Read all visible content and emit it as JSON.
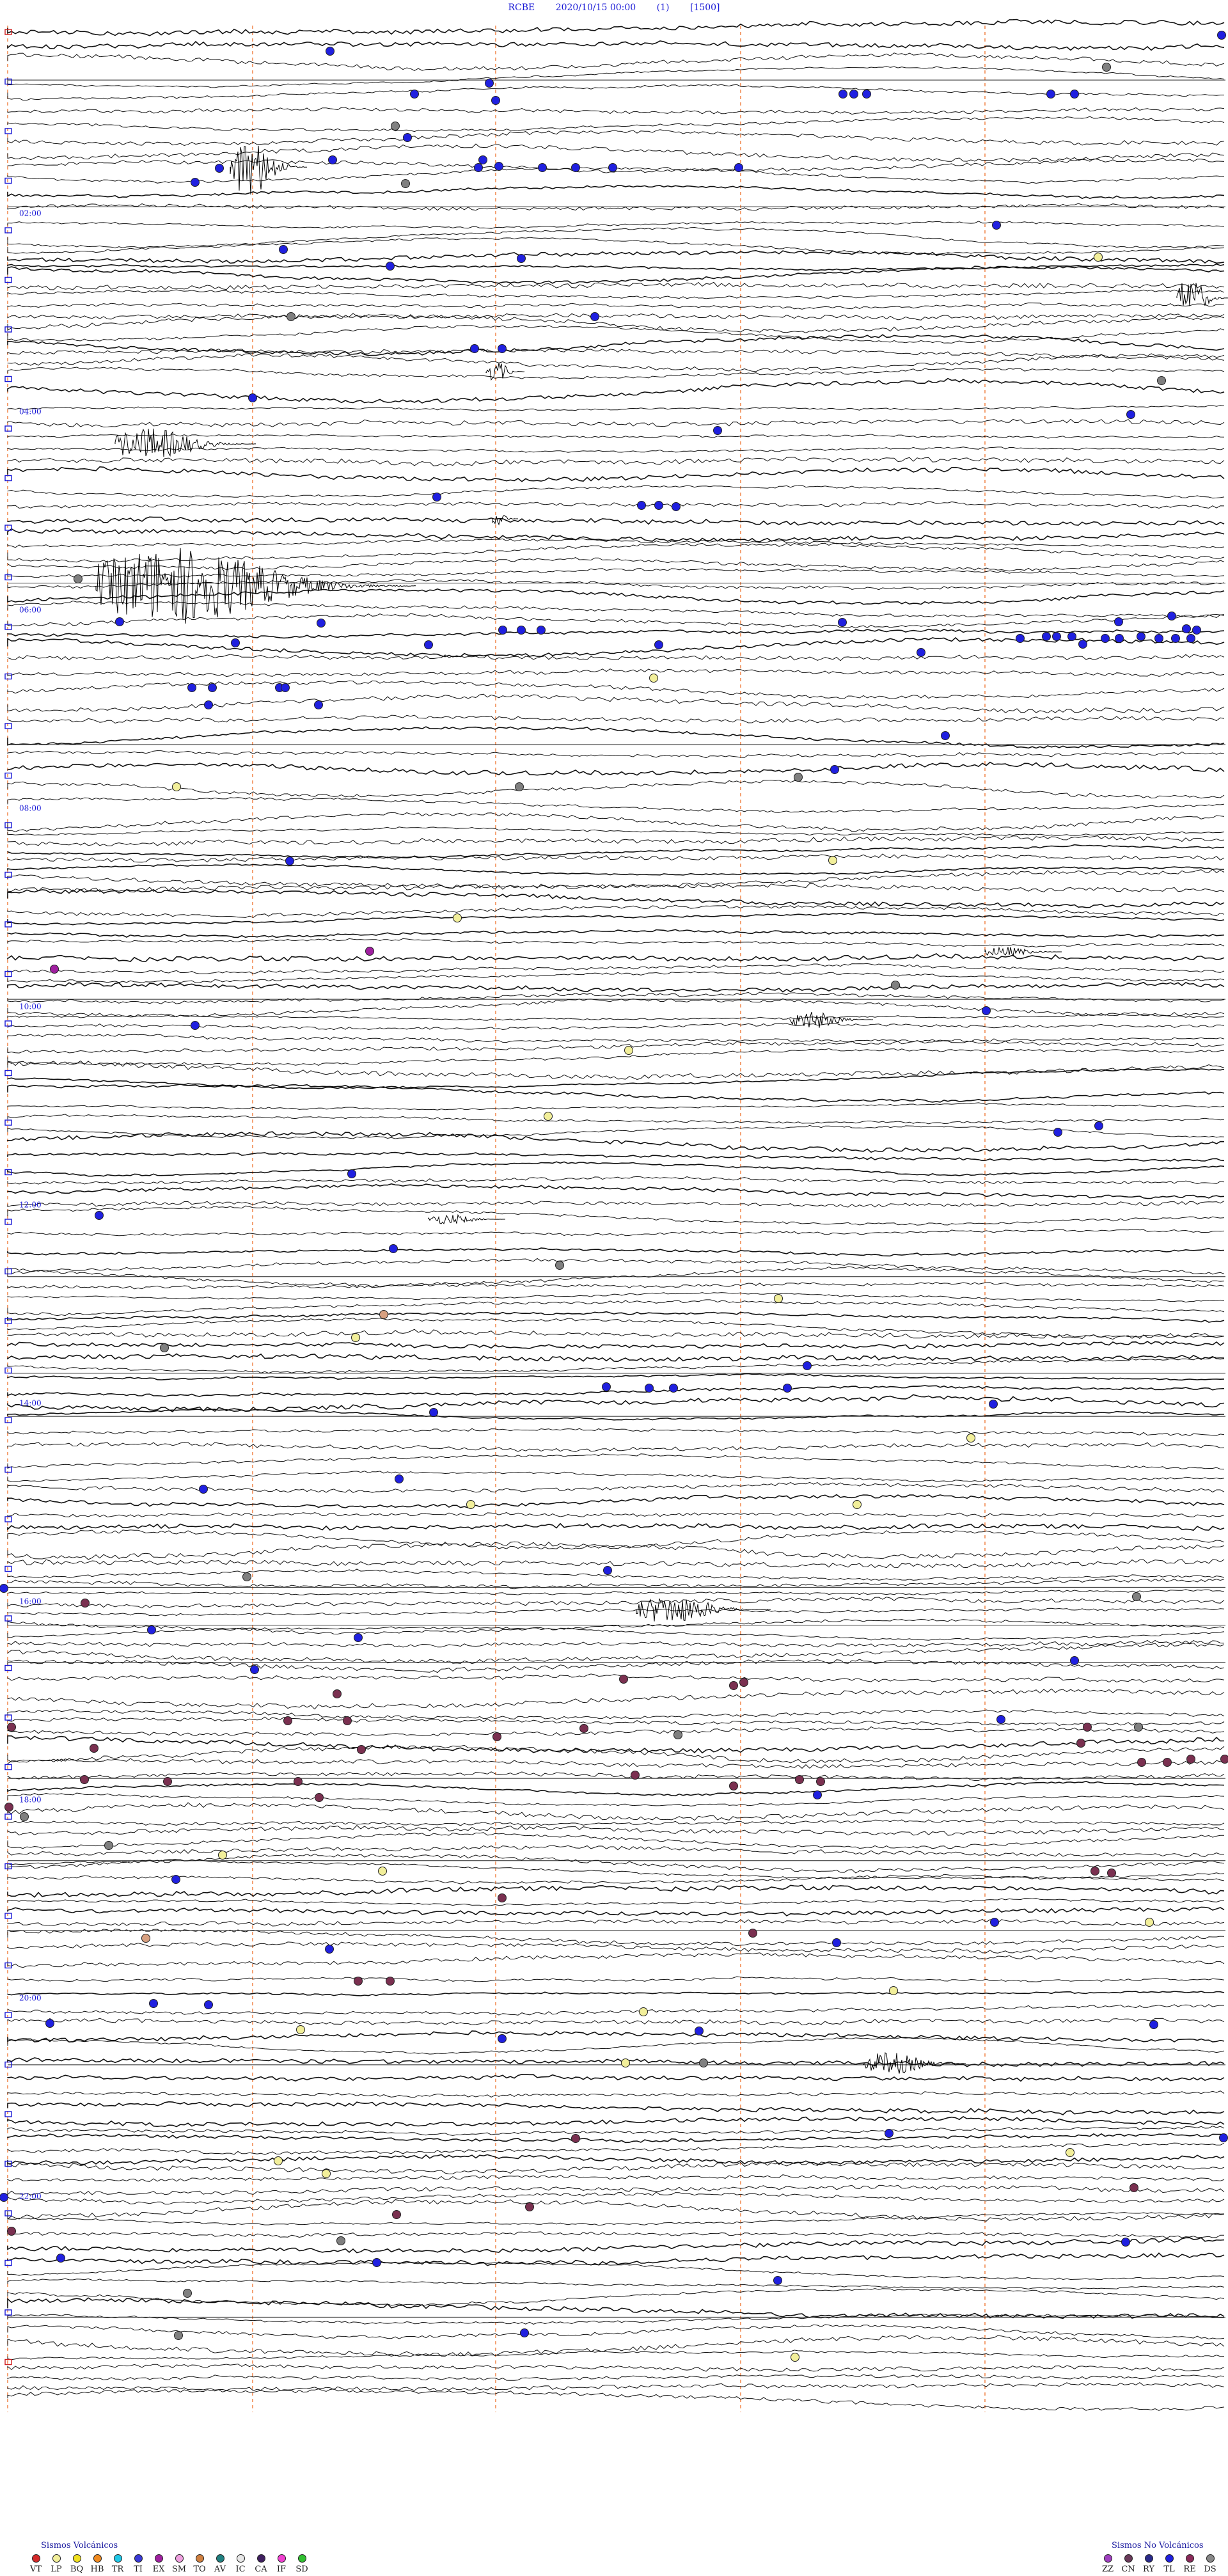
{
  "header": {
    "station": "RCBE",
    "datetime": "2020/10/15 00:00",
    "channel": "(1)",
    "scale": "[1500]"
  },
  "hour_labels": [
    "02:00",
    "04:00",
    "06:00",
    "08:00",
    "10:00",
    "12:00",
    "14:00",
    "16:00",
    "18:00",
    "20:00",
    "22:00"
  ],
  "legend_volcanic": {
    "title": "Sismos Volcánicos",
    "items": [
      {
        "code": "VT",
        "color": "#d42a2a"
      },
      {
        "code": "LP",
        "color": "#f2ef9a"
      },
      {
        "code": "BQ",
        "color": "#f0e020"
      },
      {
        "code": "HB",
        "color": "#f08a20"
      },
      {
        "code": "TR",
        "color": "#20c8e8"
      },
      {
        "code": "TI",
        "color": "#3a3ad8"
      },
      {
        "code": "EX",
        "color": "#a020a0"
      },
      {
        "code": "SM",
        "color": "#f0a0e0"
      },
      {
        "code": "TO",
        "color": "#d08040"
      },
      {
        "code": "AV",
        "color": "#208080"
      },
      {
        "code": "IC",
        "color": "#e8e8e8"
      },
      {
        "code": "CA",
        "color": "#402060"
      },
      {
        "code": "IF",
        "color": "#f040d0"
      },
      {
        "code": "SD",
        "color": "#30c030"
      }
    ]
  },
  "legend_nonvolcanic": {
    "title": "Sismos No Volcánicos",
    "items": [
      {
        "code": "ZZ",
        "color": "#a040c0"
      },
      {
        "code": "CN",
        "color": "#6a3a5a"
      },
      {
        "code": "RY",
        "color": "#2a2a8a"
      },
      {
        "code": "TL",
        "color": "#2020e0"
      },
      {
        "code": "RE",
        "color": "#8a2a5a"
      },
      {
        "code": "DS",
        "color": "#888888"
      }
    ]
  }
}
